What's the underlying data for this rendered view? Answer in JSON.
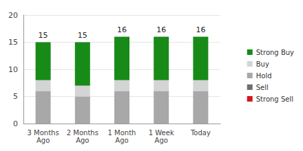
{
  "chart_data": {
    "type": "bar",
    "stacked": true,
    "categories": [
      "3 Months Ago",
      "2 Months Ago",
      "1 Month Ago",
      "1 Week Ago",
      "Today"
    ],
    "series": [
      {
        "name": "Strong Buy",
        "color": "#188a18",
        "values": [
          7,
          8,
          8,
          8,
          8
        ]
      },
      {
        "name": "Buy",
        "color": "#d4d4d4",
        "values": [
          2,
          2,
          2,
          2,
          2
        ]
      },
      {
        "name": "Hold",
        "color": "#a8a8a8",
        "values": [
          6,
          5,
          6,
          6,
          6
        ]
      },
      {
        "name": "Sell",
        "color": "#6e6e6e",
        "values": [
          0,
          0,
          0,
          0,
          0
        ]
      },
      {
        "name": "Strong Sell",
        "color": "#d8141c",
        "values": [
          0,
          0,
          0,
          0,
          0
        ]
      }
    ],
    "totals": [
      15,
      15,
      16,
      16,
      16
    ],
    "ylim": [
      0,
      20
    ],
    "yticks": [
      0,
      5,
      10,
      15,
      20
    ],
    "grid": true,
    "legend": "right"
  }
}
